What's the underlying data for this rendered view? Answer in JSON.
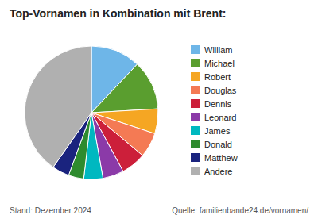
{
  "chart_data": {
    "type": "pie",
    "title": "Top-Vornamen in Kombination mit Brent:",
    "categories": [
      "William",
      "Michael",
      "Robert",
      "Douglas",
      "Dennis",
      "Leonard",
      "James",
      "Donald",
      "Matthew",
      "Andere"
    ],
    "values": [
      13.0,
      13.0,
      6.5,
      6.5,
      6.5,
      5.5,
      5.0,
      4.0,
      4.5,
      43.5
    ],
    "colors": [
      "#6eb6e8",
      "#5a9e2f",
      "#f5a623",
      "#f47a54",
      "#cc1f3a",
      "#8b3aa8",
      "#00b8c0",
      "#2e8b2e",
      "#1a237e",
      "#b0b0b0"
    ],
    "annotations": [
      "Stand: Dezember 2024",
      "Quelle: familienbande24.de/vornamen/"
    ],
    "legend": "right"
  }
}
